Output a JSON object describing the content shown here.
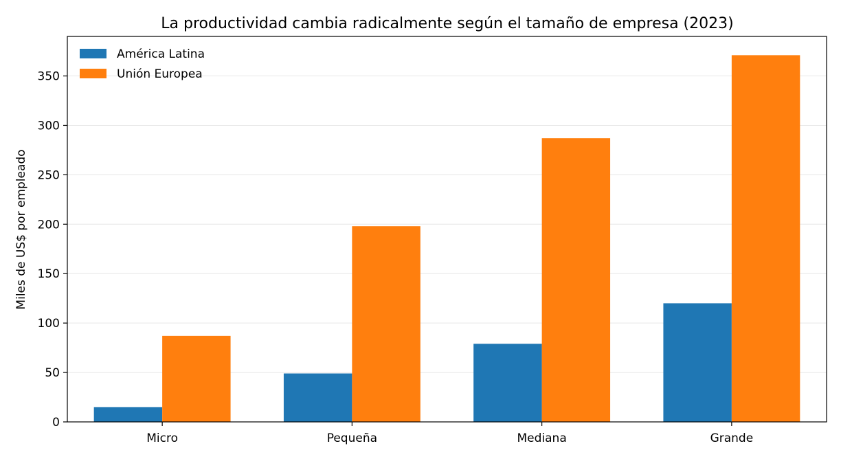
{
  "chart_data": {
    "type": "bar",
    "title": "La productividad cambia radicalmente según el tamaño de empresa (2023)",
    "xlabel": "",
    "ylabel": "Miles de US$ por empleado",
    "categories": [
      "Micro",
      "Pequeña",
      "Mediana",
      "Grande"
    ],
    "series": [
      {
        "name": "América Latina",
        "color": "#1f77b4",
        "values": [
          15,
          49,
          79,
          120
        ]
      },
      {
        "name": "Unión Europea",
        "color": "#ff7f0e",
        "values": [
          87,
          198,
          287,
          371
        ]
      }
    ],
    "ylim": [
      0,
      390
    ],
    "yticks": [
      0,
      50,
      100,
      150,
      200,
      250,
      300,
      350
    ],
    "grid": true,
    "legend_position": "top-left"
  }
}
